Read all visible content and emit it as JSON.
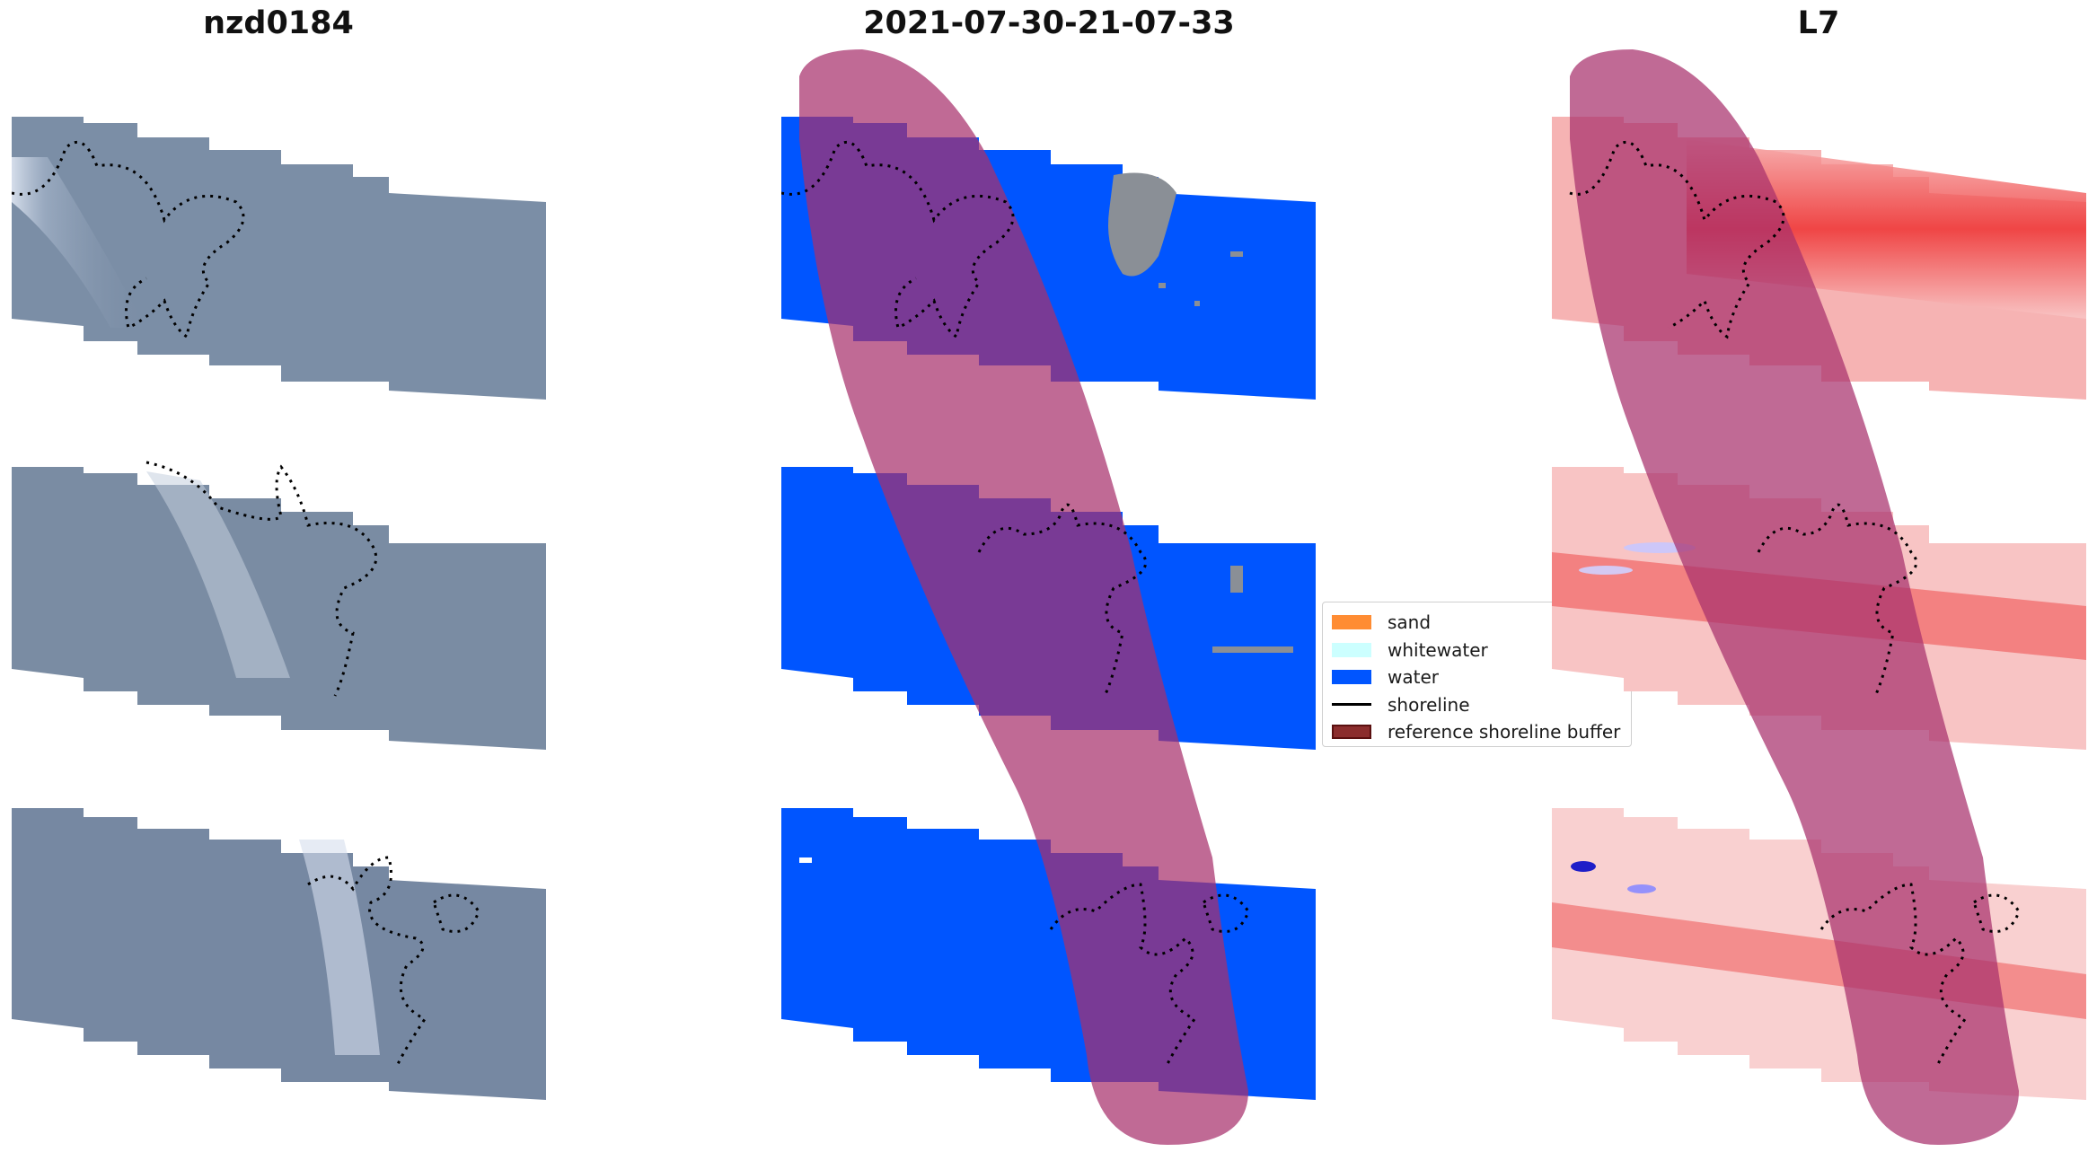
{
  "panels": [
    {
      "title": "nzd0184",
      "kind": "rgb"
    },
    {
      "title": "2021-07-30-21-07-33",
      "kind": "classified"
    },
    {
      "title": "L7",
      "kind": "index"
    }
  ],
  "legend": {
    "items": [
      {
        "label": "sand",
        "color": "#ff8c33",
        "shape": "patch"
      },
      {
        "label": "whitewater",
        "color": "#ccffff",
        "shape": "patch"
      },
      {
        "label": "water",
        "color": "#0055ff",
        "shape": "patch"
      },
      {
        "label": "shoreline",
        "color": "#000000",
        "shape": "line"
      },
      {
        "label": "reference shoreline buffer",
        "color": "#8b2d2d",
        "shape": "patch-edged"
      }
    ]
  },
  "colors": {
    "water": "#0055ff",
    "rgb_tile": "#7b8ea6",
    "buffer": "#a8306c",
    "index_base": "#f6b3b3"
  },
  "chart_data": {
    "type": "map",
    "title": "2021-07-30-21-07-33",
    "legend_location": "center-left"
  }
}
